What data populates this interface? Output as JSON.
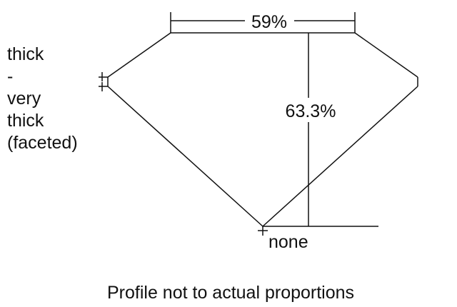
{
  "labels": {
    "table_percent": "59%",
    "depth_percent": "63.3%",
    "girdle_lines": [
      "thick",
      "-",
      "very",
      "thick",
      "(faceted)"
    ],
    "culet": "none",
    "caption": "Profile not to actual proportions"
  },
  "colors": {
    "line": "#111111",
    "background": "#ffffff"
  }
}
